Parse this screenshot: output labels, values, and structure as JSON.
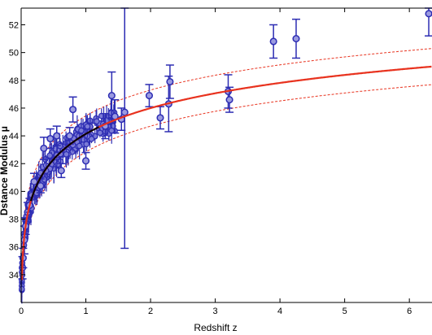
{
  "chart_data": {
    "type": "scatter",
    "xlabel": "Redshift z",
    "ylabel": "Dstance Modulus μ",
    "xlim": [
      0,
      6.35
    ],
    "ylim": [
      32,
      53.2
    ],
    "x_ticks": [
      0,
      1,
      2,
      3,
      4,
      5,
      6
    ],
    "y_ticks": [
      34,
      36,
      38,
      40,
      42,
      44,
      46,
      48,
      50,
      52
    ],
    "grid": false,
    "legend": "none",
    "colors": {
      "points": "#2d2db3",
      "fit_curve": "#e8321e",
      "low_z_curve": "#000000",
      "band": "#e8321e"
    },
    "sn_cluster": {
      "z_range": [
        0.01,
        1.45
      ],
      "error_range": [
        0.2,
        1.1
      ]
    },
    "points": [
      {
        "z": 0.02,
        "mu": 34.5,
        "err": 0.8
      },
      {
        "z": 0.03,
        "mu": 35.2,
        "err": 0.7
      },
      {
        "z": 0.05,
        "mu": 36.5,
        "err": 1.0
      },
      {
        "z": 0.07,
        "mu": 37.5,
        "err": 0.6
      },
      {
        "z": 0.1,
        "mu": 38.5,
        "err": 0.7
      },
      {
        "z": 0.13,
        "mu": 39.0,
        "err": 0.5
      },
      {
        "z": 0.2,
        "mu": 40.7,
        "err": 0.6
      },
      {
        "z": 0.3,
        "mu": 40.4,
        "err": 0.5
      },
      {
        "z": 0.35,
        "mu": 43.1,
        "err": 0.8
      },
      {
        "z": 0.45,
        "mu": 43.8,
        "err": 0.7
      },
      {
        "z": 0.55,
        "mu": 44.0,
        "err": 0.7
      },
      {
        "z": 0.62,
        "mu": 41.5,
        "err": 0.5
      },
      {
        "z": 0.75,
        "mu": 44.0,
        "err": 0.6
      },
      {
        "z": 0.8,
        "mu": 45.9,
        "err": 0.9
      },
      {
        "z": 1.0,
        "mu": 42.2,
        "err": 0.6
      },
      {
        "z": 1.3,
        "mu": 44.7,
        "err": 0.9
      },
      {
        "z": 1.4,
        "mu": 46.9,
        "err": 1.7
      },
      {
        "z": 1.45,
        "mu": 45.4,
        "err": 1.2
      },
      {
        "z": 1.55,
        "mu": 45.2,
        "err": 0.8
      },
      {
        "z": 1.6,
        "mu": 45.7,
        "err": 9.8
      },
      {
        "z": 1.98,
        "mu": 46.9,
        "err": 0.8
      },
      {
        "z": 2.15,
        "mu": 45.3,
        "err": 0.8
      },
      {
        "z": 2.28,
        "mu": 46.3,
        "err": 2.0
      },
      {
        "z": 2.3,
        "mu": 47.9,
        "err": 1.2
      },
      {
        "z": 3.2,
        "mu": 47.2,
        "err": 1.2
      },
      {
        "z": 3.22,
        "mu": 46.6,
        "err": 0.9
      },
      {
        "z": 3.9,
        "mu": 50.8,
        "err": 1.2
      },
      {
        "z": 4.25,
        "mu": 51.0,
        "err": 1.4
      },
      {
        "z": 6.3,
        "mu": 52.8,
        "err": 1.6
      }
    ]
  }
}
